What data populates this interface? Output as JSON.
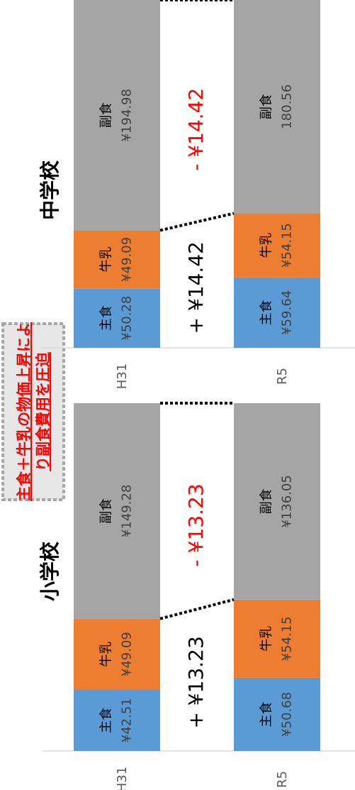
{
  "chart_data": [
    {
      "type": "bar",
      "stacked": true,
      "title": "中学校",
      "categories": [
        "H31",
        "R5"
      ],
      "series": [
        {
          "name": "主食",
          "values": [
            50.28,
            59.64
          ],
          "labels": [
            "¥50.28",
            "¥59.64"
          ],
          "color": "#5b9bd5"
        },
        {
          "name": "牛乳",
          "values": [
            49.09,
            54.15
          ],
          "labels": [
            "¥49.09",
            "¥54.15"
          ],
          "color": "#ed7d31"
        },
        {
          "name": "副食",
          "values": [
            194.98,
            180.56
          ],
          "labels": [
            "¥194.98",
            "180.56"
          ],
          "color": "#a5a5a5"
        }
      ],
      "annotations": {
        "increase": "+ ¥14.42",
        "decrease": "- ¥14.42"
      }
    },
    {
      "type": "bar",
      "stacked": true,
      "title": "小学校",
      "categories": [
        "H31",
        "R5"
      ],
      "series": [
        {
          "name": "主食",
          "values": [
            42.51,
            50.68
          ],
          "labels": [
            "¥42.51",
            "¥50.68"
          ],
          "color": "#5b9bd5"
        },
        {
          "name": "牛乳",
          "values": [
            49.09,
            54.15
          ],
          "labels": [
            "¥49.09",
            "¥54.15"
          ],
          "color": "#ed7d31"
        },
        {
          "name": "副食",
          "values": [
            149.28,
            136.05
          ],
          "labels": [
            "¥149.28",
            "¥136.05"
          ],
          "color": "#a5a5a5"
        }
      ],
      "annotations": {
        "increase": "+ ¥13.23",
        "decrease": "- ¥13.23"
      }
    }
  ],
  "callout": {
    "line1": "主食＋牛乳の物価上昇によ",
    "line2": "り副食費用を圧迫"
  },
  "colors": {
    "increase_text": "#000000",
    "decrease_text": "#ff0000",
    "connector": "#000000",
    "callout_text": "#ff0000",
    "callout_bg": "#e7e6e6",
    "callout_border": "#a6a6a6"
  }
}
